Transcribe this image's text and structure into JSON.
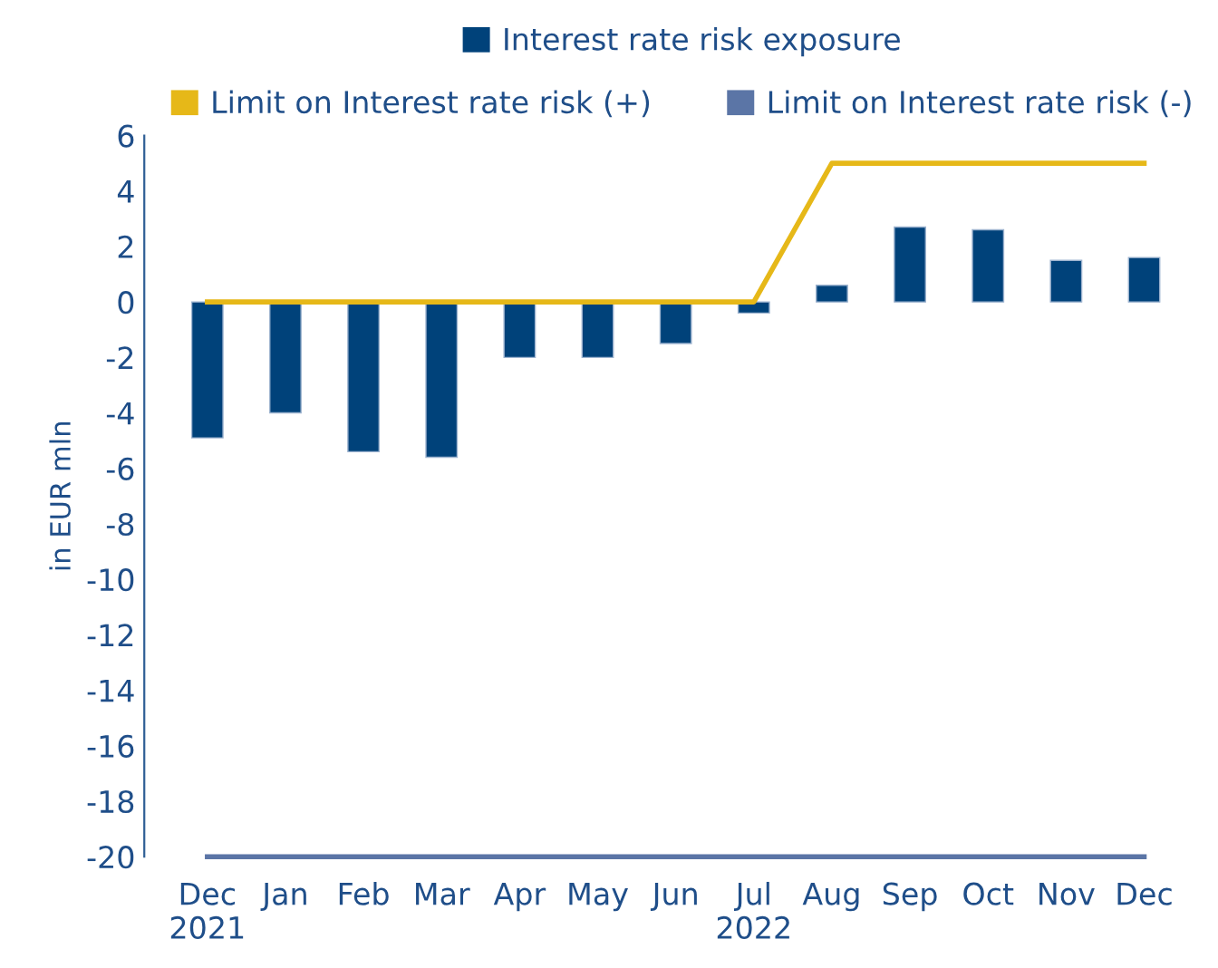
{
  "chart_data": {
    "type": "bar",
    "ylabel": "in EUR mln",
    "categories": [
      "Dec\n2021",
      "Jan",
      "Feb",
      "Mar",
      "Apr",
      "May",
      "Jun",
      "Jul\n2022",
      "Aug",
      "Sep",
      "Oct",
      "Nov",
      "Dec"
    ],
    "series": [
      {
        "name": "Interest rate risk exposure",
        "color": "#00427a",
        "values": [
          -4.9,
          -4.0,
          -5.4,
          -5.6,
          -2.0,
          -2.0,
          -1.5,
          -0.4,
          0.6,
          2.7,
          2.6,
          1.5,
          1.6
        ]
      },
      {
        "name": "Limit on Interest rate risk (+)",
        "type": "line",
        "color": "#e6b818",
        "values": [
          0,
          0,
          0,
          0,
          0,
          0,
          0,
          0,
          5,
          5,
          5,
          5,
          5
        ]
      },
      {
        "name": "Limit on Interest rate risk (-)",
        "type": "line",
        "color": "#5b75a6",
        "values": [
          -20,
          -20,
          -20,
          -20,
          -20,
          -20,
          -20,
          -20,
          -20,
          -20,
          -20,
          -20,
          -20
        ]
      }
    ],
    "ylim": [
      -20,
      6
    ],
    "yticks": [
      -20,
      -18,
      -16,
      -14,
      -12,
      -10,
      -8,
      -6,
      -4,
      -2,
      0,
      2,
      4,
      6
    ],
    "grid": false,
    "legend": "top",
    "marker": "none",
    "line_style": "solid"
  }
}
